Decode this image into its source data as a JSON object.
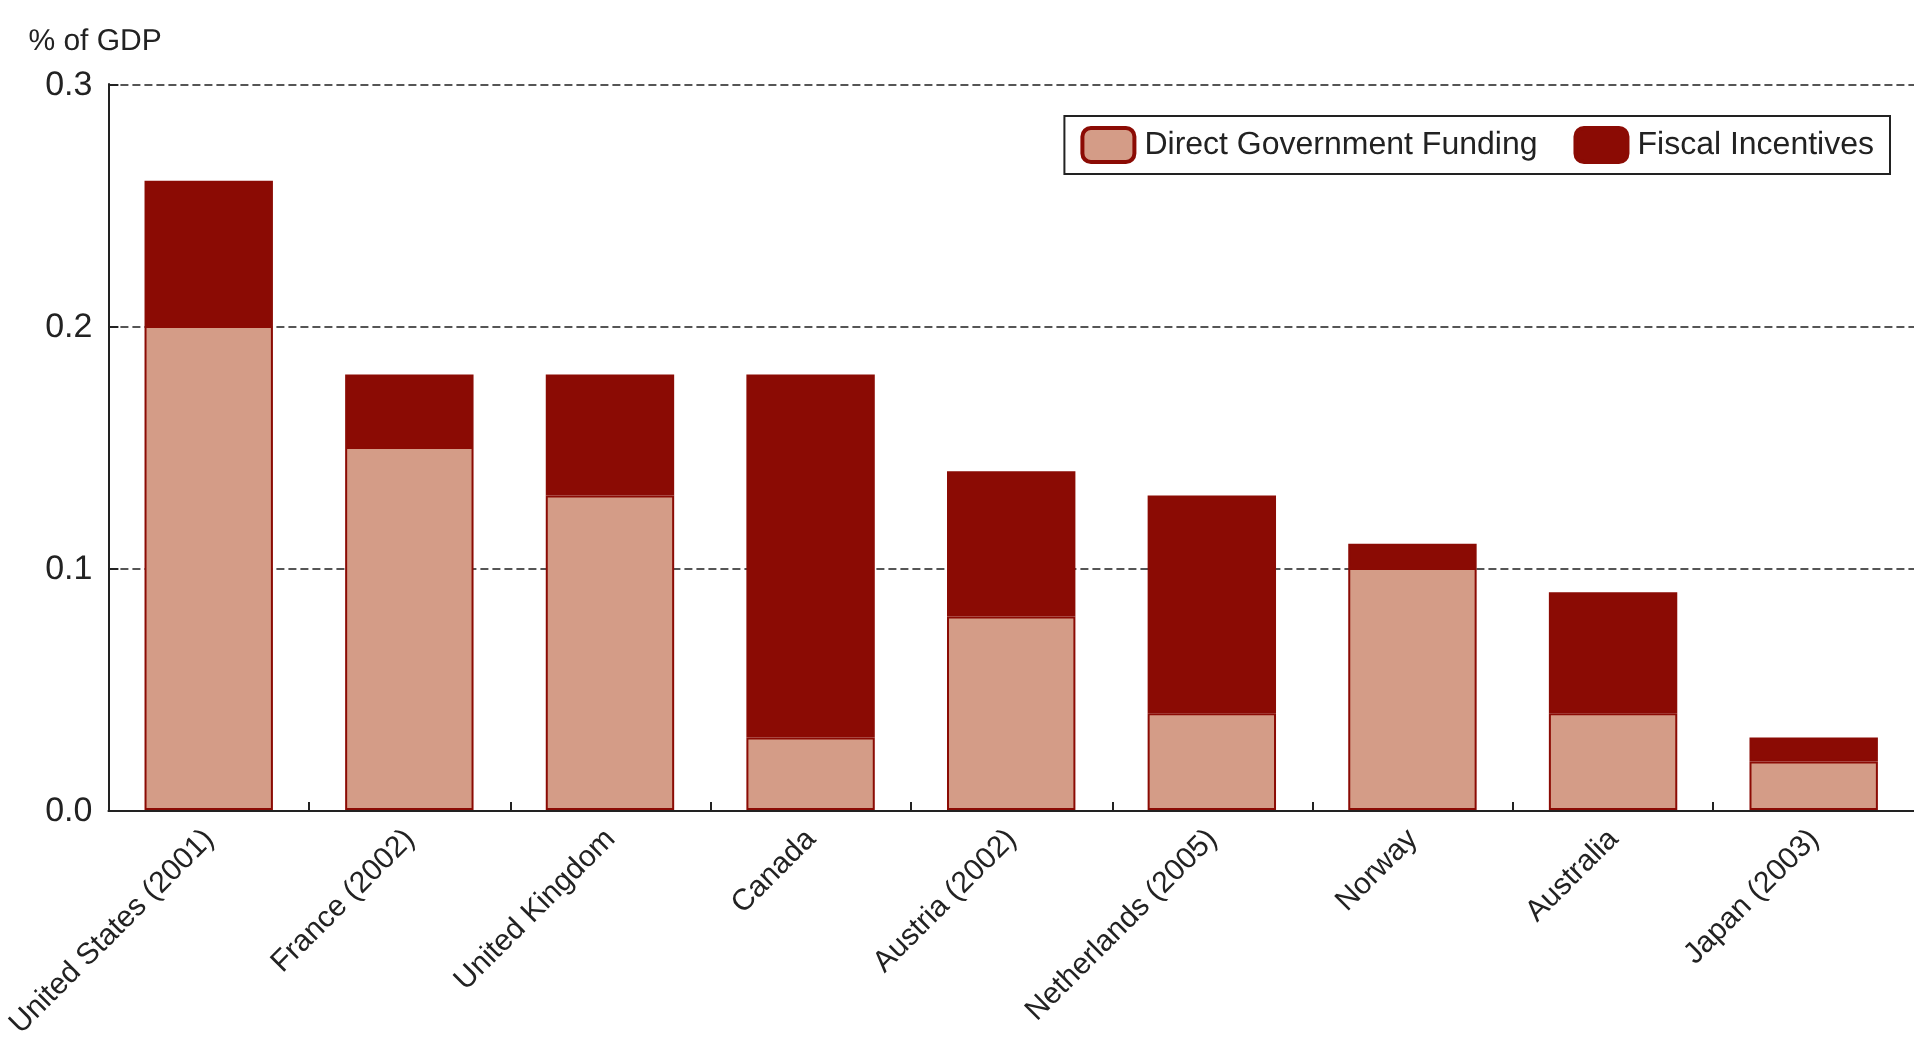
{
  "chart_data": {
    "type": "bar",
    "ylabel": "% of GDP",
    "stacked": true,
    "categories": [
      "United States (2001)",
      "France (2002)",
      "United Kingdom",
      "Canada",
      "Austria (2002)",
      "Netherlands (2005)",
      "Norway",
      "Australia",
      "Japan (2003)"
    ],
    "series": [
      {
        "name": "Direct Government Funding",
        "color": "#d49c87",
        "values": [
          0.2,
          0.15,
          0.13,
          0.03,
          0.08,
          0.04,
          0.1,
          0.04,
          0.02
        ]
      },
      {
        "name": "Fiscal Incentives",
        "color": "#8b0b04",
        "values": [
          0.06,
          0.03,
          0.05,
          0.15,
          0.06,
          0.09,
          0.01,
          0.05,
          0.01
        ]
      }
    ],
    "ylim": [
      0,
      0.3
    ],
    "yticks": [
      {
        "value": 0,
        "label": "0.0"
      },
      {
        "value": 0.1,
        "label": "0.1"
      },
      {
        "value": 0.2,
        "label": "0.2"
      },
      {
        "value": 0.3,
        "label": "0.3"
      }
    ],
    "grid": "y",
    "legend": "top right"
  }
}
